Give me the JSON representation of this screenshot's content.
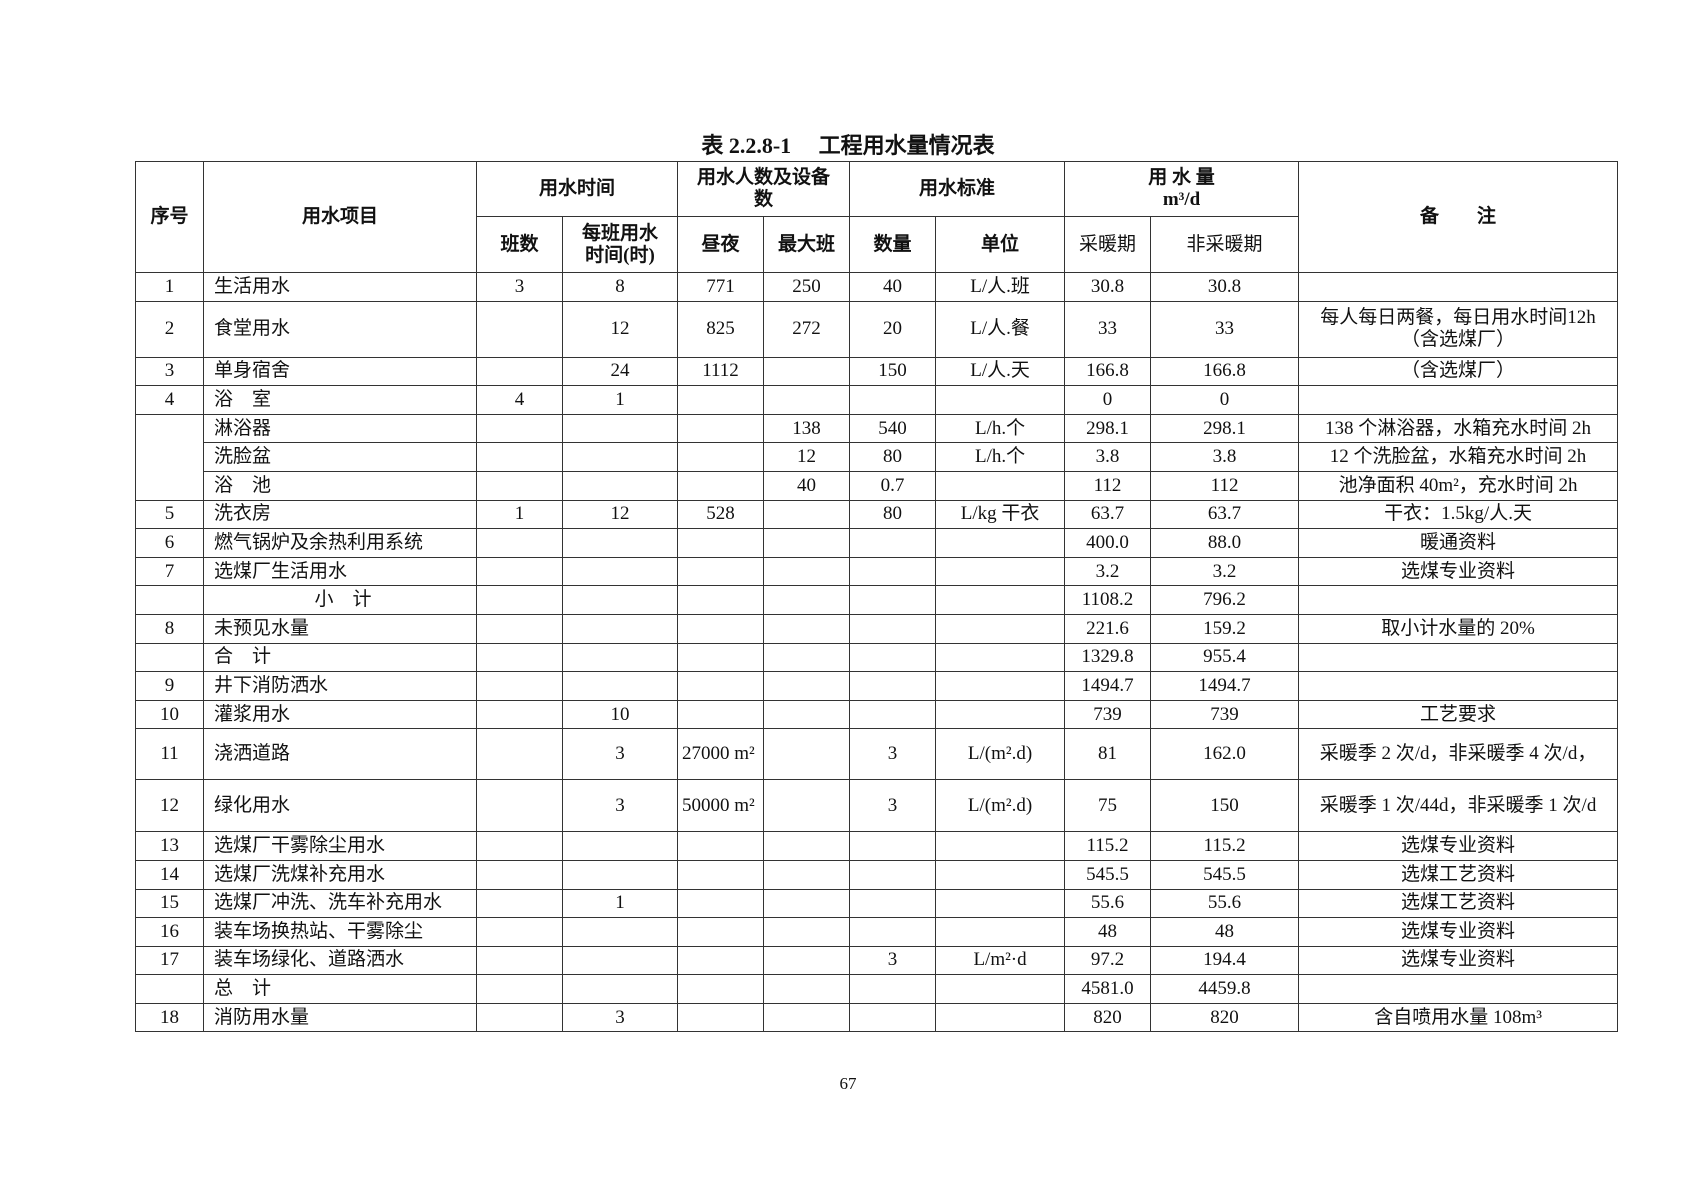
{
  "title": "表 2.2.8-1     工程用水量情况表",
  "header": {
    "no": "序号",
    "item": "用水项目",
    "time_group": "用水时间",
    "shifts": "班数",
    "hours_per_shift": "每班用水时间(时)",
    "people_group": "用水人数及设备数",
    "day_night": "昼夜",
    "max_shift": "最大班",
    "standard_group": "用水标准",
    "quantity": "数量",
    "unit": "单位",
    "volume_group": "用 水 量",
    "volume_unit": "m³/d",
    "heating": "采暖期",
    "non_heating": "非采暖期",
    "remarks": "备　　注"
  },
  "rows": [
    [
      "1",
      "生活用水",
      "3",
      "8",
      "771",
      "250",
      "40",
      "L/人.班",
      "30.8",
      "30.8",
      ""
    ],
    [
      "2",
      "食堂用水",
      "",
      "12",
      "825",
      "272",
      "20",
      "L/人.餐",
      "33",
      "33",
      "每人每日两餐，每日用水时间12h（含选煤厂）"
    ],
    [
      "3",
      "单身宿舍",
      "",
      "24",
      "1112",
      "",
      "150",
      "L/人.天",
      "166.8",
      "166.8",
      "（含选煤厂）"
    ],
    [
      "4",
      "浴　室",
      "4",
      "1",
      "",
      "",
      "",
      "",
      "0",
      "0",
      ""
    ],
    [
      "",
      "淋浴器",
      "",
      "",
      "",
      "138",
      "540",
      "L/h.个",
      "298.1",
      "298.1",
      "138 个淋浴器，水箱充水时间 2h"
    ],
    [
      "",
      "洗脸盆",
      "",
      "",
      "",
      "12",
      "80",
      "L/h.个",
      "3.8",
      "3.8",
      "12 个洗脸盆，水箱充水时间 2h"
    ],
    [
      "",
      "浴　池",
      "",
      "",
      "",
      "40",
      "0.7",
      "",
      "112",
      "112",
      "池净面积 40m²，充水时间 2h"
    ],
    [
      "5",
      "洗衣房",
      "1",
      "12",
      "528",
      "",
      "80",
      "L/kg 干衣",
      "63.7",
      "63.7",
      "干衣：1.5kg/人.天"
    ],
    [
      "6",
      "燃气锅炉及余热利用系统",
      "",
      "",
      "",
      "",
      "",
      "",
      "400.0",
      "88.0",
      "暖通资料"
    ],
    [
      "7",
      "选煤厂生活用水",
      "",
      "",
      "",
      "",
      "",
      "",
      "3.2",
      "3.2",
      "选煤专业资料"
    ],
    [
      "",
      "小　计",
      "",
      "",
      "",
      "",
      "",
      "",
      "1108.2",
      "796.2",
      ""
    ],
    [
      "8",
      "未预见水量",
      "",
      "",
      "",
      "",
      "",
      "",
      "221.6",
      "159.2",
      "取小计水量的 20%"
    ],
    [
      "",
      "合　计",
      "",
      "",
      "",
      "",
      "",
      "",
      "1329.8",
      "955.4",
      ""
    ],
    [
      "9",
      "井下消防洒水",
      "",
      "",
      "",
      "",
      "",
      "",
      "1494.7",
      "1494.7",
      ""
    ],
    [
      "10",
      "灌浆用水",
      "",
      "10",
      "",
      "",
      "",
      "",
      "739",
      "739",
      "工艺要求"
    ],
    [
      "11",
      "浇洒道路",
      "",
      "3",
      "27000 m²",
      "",
      "3",
      "L/(m².d)",
      "81",
      "162.0",
      "采暖季 2 次/d，非采暖季 4 次/d，"
    ],
    [
      "12",
      "绿化用水",
      "",
      "3",
      "50000 m²",
      "",
      "3",
      "L/(m².d)",
      "75",
      "150",
      "采暖季 1 次/44d，非采暖季 1 次/d"
    ],
    [
      "13",
      "选煤厂干雾除尘用水",
      "",
      "",
      "",
      "",
      "",
      "",
      "115.2",
      "115.2",
      "选煤专业资料"
    ],
    [
      "14",
      "选煤厂洗煤补充用水",
      "",
      "",
      "",
      "",
      "",
      "",
      "545.5",
      "545.5",
      "选煤工艺资料"
    ],
    [
      "15",
      "选煤厂冲洗、洗车补充用水",
      "",
      "1",
      "",
      "",
      "",
      "",
      "55.6",
      "55.6",
      "选煤工艺资料"
    ],
    [
      "16",
      "装车场换热站、干雾除尘",
      "",
      "",
      "",
      "",
      "",
      "",
      "48",
      "48",
      "选煤专业资料"
    ],
    [
      "17",
      "装车场绿化、道路洒水",
      "",
      "",
      "",
      "",
      "3",
      "L/m²·d",
      "97.2",
      "194.4",
      "选煤专业资料"
    ],
    [
      "",
      "总　计",
      "",
      "",
      "",
      "",
      "",
      "",
      "4581.0",
      "4459.8",
      ""
    ],
    [
      "18",
      "消防用水量",
      "",
      "3",
      "",
      "",
      "",
      "",
      "820",
      "820",
      "含自喷用水量 108m³"
    ]
  ],
  "page_number": "67"
}
